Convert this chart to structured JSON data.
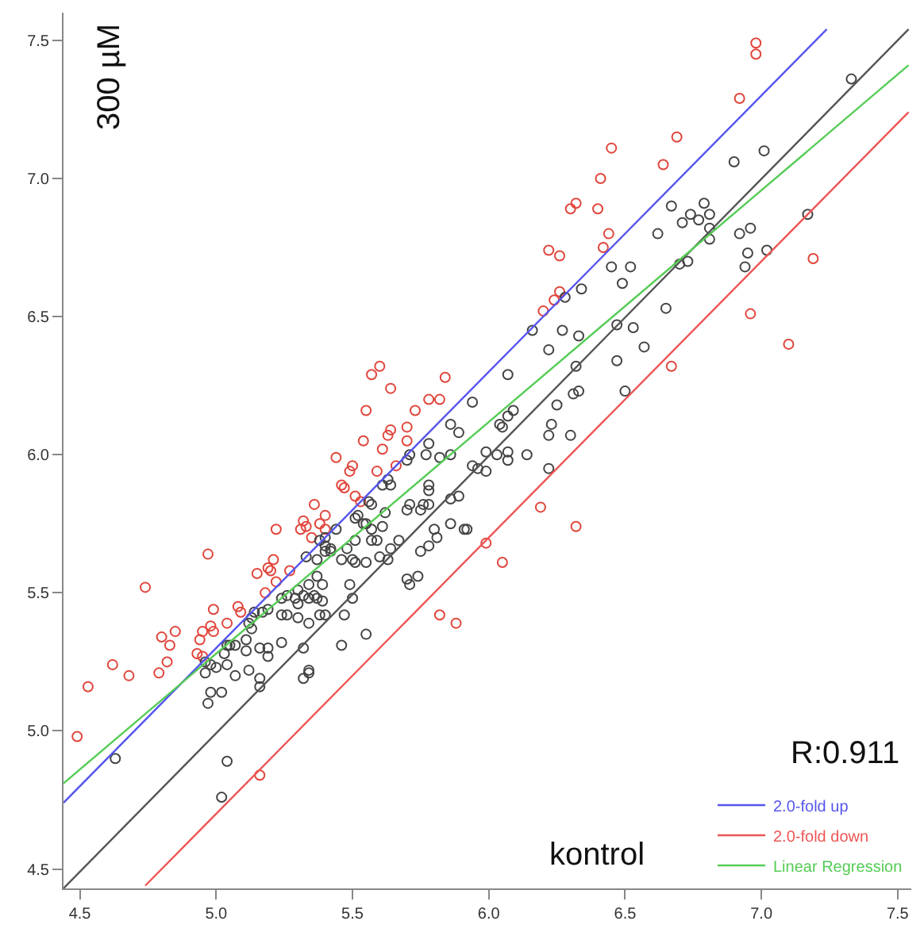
{
  "chart_data": {
    "type": "scatter",
    "xlabel": "kontrol",
    "ylabel": "300 µM",
    "annotations": [
      "R:0.911"
    ],
    "xlim": [
      4.44,
      7.55
    ],
    "ylim": [
      4.43,
      7.6
    ],
    "xticks": [
      4.5,
      {
        "value": 5,
        "label": "5.0"
      },
      5.5,
      {
        "value": 6,
        "label": "6.0"
      },
      6.5,
      {
        "value": 7,
        "label": "7.0"
      },
      7.5
    ],
    "yticks": [
      4.5,
      {
        "value": 5,
        "label": "5.0"
      },
      5.5,
      {
        "value": 6,
        "label": "6.0"
      },
      6.5,
      {
        "value": 7,
        "label": "7.0"
      },
      7.5
    ],
    "legend": "bottom right",
    "series": [
      {
        "type": "scatter",
        "marker": "circle",
        "color": "#e0463c",
        "x": [
          6.98,
          6.98,
          6.92,
          6.69,
          6.45,
          6.64,
          6.41,
          6.32,
          6.3,
          6.4,
          6.44,
          6.42,
          6.22,
          6.26,
          6.26,
          6.24,
          6.2,
          7.19,
          6.96,
          7.1,
          6.67,
          6.19,
          6.32,
          5.99,
          6.05,
          4.49,
          4.53,
          4.62,
          4.68,
          4.74,
          4.79,
          4.82,
          4.8,
          4.83,
          4.85,
          4.94,
          4.95,
          4.93,
          4.95,
          4.97,
          4.98,
          4.99,
          4.99,
          5.04,
          5.08,
          5.09,
          5.15,
          5.18,
          5.19,
          5.2,
          5.21,
          5.22,
          5.22,
          5.27,
          5.31,
          5.32,
          5.33,
          5.35,
          5.36,
          5.38,
          5.4,
          5.4,
          5.44,
          5.46,
          5.47,
          5.49,
          5.5,
          5.51,
          5.53,
          5.59,
          5.61,
          5.66,
          5.82,
          5.88,
          5.16,
          5.57,
          5.6,
          5.64,
          5.84,
          5.55,
          5.73,
          5.78,
          5.82,
          5.64,
          5.7,
          5.63,
          5.54,
          5.7
        ],
        "values": [
          7.49,
          7.45,
          7.29,
          7.15,
          7.11,
          7.05,
          7.0,
          6.91,
          6.89,
          6.89,
          6.8,
          6.75,
          6.74,
          6.72,
          6.59,
          6.56,
          6.52,
          6.71,
          6.51,
          6.4,
          6.32,
          5.81,
          5.74,
          5.68,
          5.61,
          4.98,
          5.16,
          5.24,
          5.2,
          5.52,
          5.21,
          5.25,
          5.34,
          5.31,
          5.36,
          5.33,
          5.36,
          5.28,
          5.27,
          5.64,
          5.38,
          5.36,
          5.44,
          5.39,
          5.45,
          5.43,
          5.57,
          5.5,
          5.59,
          5.58,
          5.62,
          5.54,
          5.73,
          5.58,
          5.73,
          5.76,
          5.74,
          5.7,
          5.82,
          5.75,
          5.78,
          5.73,
          5.99,
          5.89,
          5.88,
          5.94,
          5.96,
          5.85,
          5.83,
          5.94,
          6.02,
          5.96,
          5.42,
          5.39,
          4.84,
          6.29,
          6.32,
          6.24,
          6.28,
          6.16,
          6.16,
          6.2,
          6.2,
          6.09,
          6.1,
          6.07,
          6.05,
          6.05
        ]
      },
      {
        "type": "scatter",
        "marker": "circle",
        "color": "#444444",
        "x": [
          7.33,
          7.01,
          6.9,
          6.67,
          6.79,
          6.74,
          6.77,
          6.81,
          6.71,
          6.62,
          6.81,
          6.81,
          6.92,
          6.96,
          6.95,
          7.02,
          6.94,
          7.17,
          6.7,
          6.73,
          6.45,
          6.52,
          6.49,
          6.34,
          6.28,
          6.65,
          6.16,
          6.27,
          6.33,
          6.47,
          6.53,
          6.22,
          6.57,
          6.32,
          6.47,
          6.07,
          6.5,
          6.33,
          6.31,
          6.25,
          5.94,
          6.09,
          6.07,
          6.04,
          6.05,
          6.23,
          6.22,
          6.3,
          5.99,
          6.03,
          6.07,
          6.07,
          6.14,
          6.22,
          5.94,
          5.96,
          5.99,
          5.92,
          5.86,
          5.89,
          5.78,
          5.77,
          5.71,
          5.7,
          5.82,
          5.86,
          4.63,
          5.02,
          5.04,
          4.98,
          5.02,
          4.97,
          4.96,
          4.96,
          4.98,
          5.0,
          5.03,
          5.04,
          5.04,
          5.05,
          5.07,
          5.07,
          5.11,
          5.11,
          5.12,
          5.12,
          5.13,
          5.16,
          5.19,
          5.19,
          5.16,
          5.16,
          5.13,
          5.14,
          5.17,
          5.19,
          5.24,
          5.24,
          5.26,
          5.24,
          5.26,
          5.29,
          5.3,
          5.3,
          5.3,
          5.32,
          5.32,
          5.34,
          5.34,
          5.34,
          5.32,
          5.34,
          5.34,
          5.36,
          5.37,
          5.39,
          5.38,
          5.4,
          5.39,
          5.37,
          5.37,
          5.33,
          5.4,
          5.42,
          5.4,
          5.42,
          5.4,
          5.38,
          5.44,
          5.46,
          5.48,
          5.51,
          5.5,
          5.51,
          5.55,
          5.49,
          5.5,
          5.47,
          5.46,
          5.55,
          5.51,
          5.52,
          5.54,
          5.55,
          5.57,
          5.56,
          5.57,
          5.57,
          5.59,
          5.6,
          5.61,
          5.62,
          5.61,
          5.64,
          5.63,
          5.63,
          5.64,
          5.67,
          5.7,
          5.71,
          5.7,
          5.71,
          5.74,
          5.75,
          5.78,
          5.8,
          5.81,
          5.75,
          5.76,
          5.78,
          5.78,
          5.78,
          5.86,
          5.89,
          5.86,
          5.91
        ],
        "values": [
          7.36,
          7.1,
          7.06,
          6.9,
          6.91,
          6.87,
          6.85,
          6.87,
          6.84,
          6.8,
          6.82,
          6.78,
          6.8,
          6.82,
          6.73,
          6.74,
          6.68,
          6.87,
          6.69,
          6.7,
          6.68,
          6.68,
          6.62,
          6.6,
          6.57,
          6.53,
          6.45,
          6.45,
          6.43,
          6.47,
          6.46,
          6.38,
          6.39,
          6.32,
          6.34,
          6.29,
          6.23,
          6.23,
          6.22,
          6.18,
          6.19,
          6.16,
          6.14,
          6.11,
          6.1,
          6.11,
          6.07,
          6.07,
          6.01,
          6.0,
          6.01,
          5.98,
          6.0,
          5.95,
          5.96,
          5.95,
          5.94,
          5.73,
          6.11,
          6.08,
          6.04,
          6.0,
          6.0,
          5.98,
          5.99,
          6.0,
          4.9,
          4.76,
          4.89,
          5.14,
          5.14,
          5.1,
          5.21,
          5.25,
          5.24,
          5.23,
          5.28,
          5.24,
          5.31,
          5.31,
          5.2,
          5.31,
          5.29,
          5.33,
          5.39,
          5.22,
          5.37,
          5.3,
          5.3,
          5.27,
          5.19,
          5.16,
          5.41,
          5.43,
          5.43,
          5.44,
          5.32,
          5.42,
          5.42,
          5.48,
          5.49,
          5.48,
          5.51,
          5.46,
          5.41,
          5.3,
          5.19,
          5.22,
          5.21,
          5.39,
          5.49,
          5.53,
          5.48,
          5.49,
          5.48,
          5.47,
          5.42,
          5.42,
          5.53,
          5.56,
          5.62,
          5.63,
          5.65,
          5.66,
          5.67,
          5.65,
          5.7,
          5.69,
          5.73,
          5.62,
          5.66,
          5.69,
          5.62,
          5.61,
          5.61,
          5.53,
          5.48,
          5.42,
          5.31,
          5.35,
          5.77,
          5.78,
          5.75,
          5.75,
          5.82,
          5.83,
          5.73,
          5.69,
          5.69,
          5.63,
          5.74,
          5.79,
          5.89,
          5.89,
          5.91,
          5.62,
          5.66,
          5.69,
          5.8,
          5.82,
          5.55,
          5.53,
          5.56,
          5.65,
          5.67,
          5.73,
          5.7,
          5.8,
          5.82,
          5.82,
          5.87,
          5.89,
          5.84,
          5.85,
          5.75,
          5.73
        ]
      },
      {
        "type": "line",
        "marker": "none",
        "color": "#555555",
        "x": [
          4.44,
          7.54
        ],
        "values": [
          4.43,
          7.54
        ]
      },
      {
        "type": "line",
        "marker": "none",
        "name": "2.0-fold up",
        "color": "#5555ee",
        "x": [
          4.44,
          7.24
        ],
        "values": [
          4.74,
          7.54
        ]
      },
      {
        "type": "line",
        "marker": "none",
        "name": "2.0-fold down",
        "color": "#ee5555",
        "x": [
          4.74,
          7.54
        ],
        "values": [
          4.44,
          7.24
        ]
      },
      {
        "type": "line",
        "marker": "none",
        "name": "Linear Regression",
        "color": "#55cc55",
        "x": [
          4.44,
          7.54
        ],
        "values": [
          4.81,
          7.41
        ]
      }
    ]
  }
}
